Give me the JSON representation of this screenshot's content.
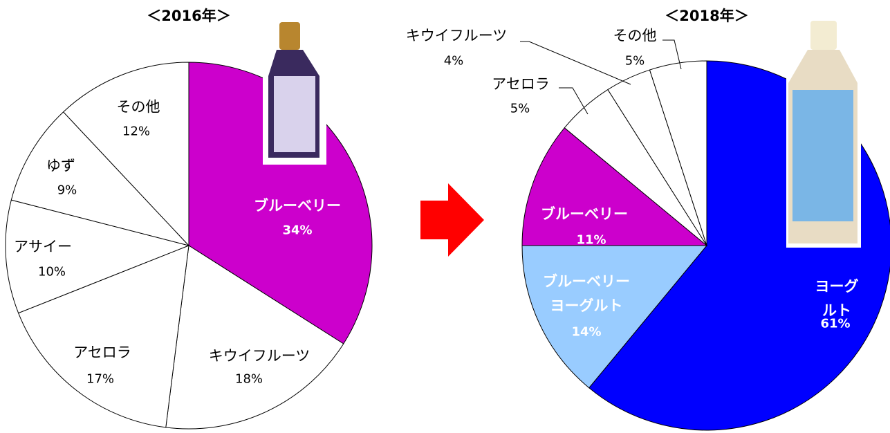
{
  "chart_data": [
    {
      "type": "pie",
      "title": "＜2016年＞",
      "categories": [
        "ブルーベリー",
        "キウイフルーツ",
        "アセロラ",
        "アサイー",
        "ゆず",
        "その他"
      ],
      "values": [
        34,
        18,
        17,
        10,
        9,
        12
      ],
      "value_labels": [
        "34%",
        "18%",
        "17%",
        "10%",
        "9%",
        "12%"
      ],
      "colors": [
        "#cc00cc",
        "#ffffff",
        "#ffffff",
        "#ffffff",
        "#ffffff",
        "#ffffff"
      ]
    },
    {
      "type": "pie",
      "title": "＜2018年＞",
      "categories": [
        "ヨーグルト",
        "ブルーベリー\nヨーグルト",
        "ブルーベリー",
        "アセロラ",
        "キウイフルーツ",
        "その他"
      ],
      "values": [
        61,
        14,
        11,
        5,
        4,
        5
      ],
      "value_labels": [
        "61%",
        "14%",
        "11%",
        "5%",
        "4%",
        "5%"
      ],
      "colors": [
        "#0000ff",
        "#99ccff",
        "#cc00cc",
        "#ffffff",
        "#ffffff",
        "#ffffff"
      ]
    }
  ]
}
